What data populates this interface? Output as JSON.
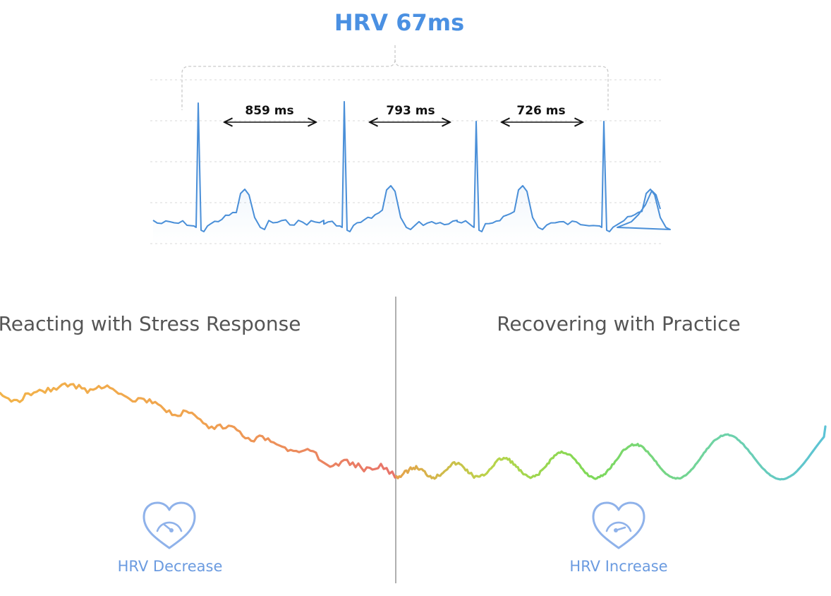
{
  "hrv_title": "HRV 67ms",
  "intervals": [
    {
      "label": "859 ms"
    },
    {
      "label": "793 ms"
    },
    {
      "label": "726 ms"
    }
  ],
  "left_panel": {
    "heading": "Reacting with Stress Response",
    "icon": "heart-gauge-icon",
    "caption": "HRV Decrease"
  },
  "right_panel": {
    "heading": "Recovering with Practice",
    "icon": "heart-gauge-icon",
    "caption": "HRV Increase"
  },
  "colors": {
    "ecg_blue": "#4a8fd8",
    "title_blue": "#4a90e2",
    "caption_blue": "#6b9be0",
    "icon_blue": "#8fb2ea",
    "stress_start": "#f2b34a",
    "stress_end": "#e8736a",
    "recovery_start": "#e6a24a",
    "recovery_mid": "#7ed957",
    "recovery_end": "#5cc3d6"
  }
}
